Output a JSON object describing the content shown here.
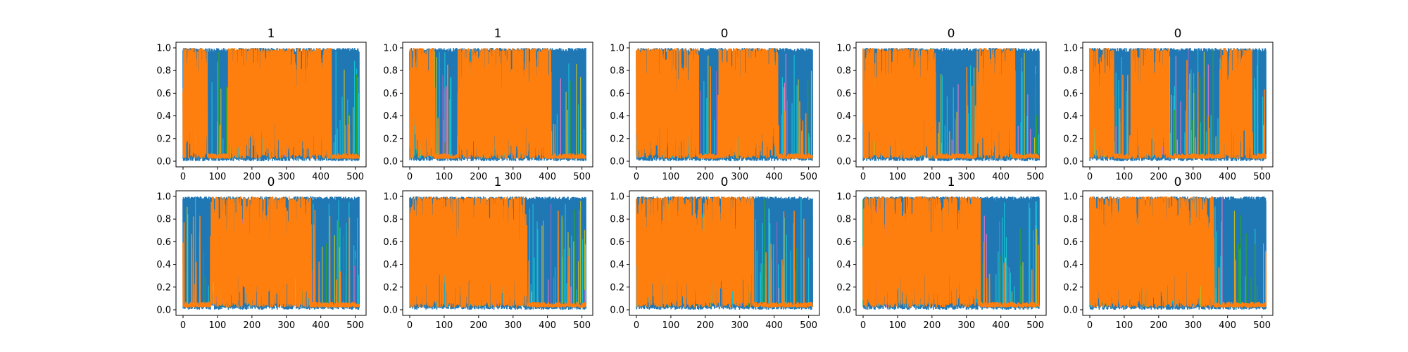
{
  "chart_data": {
    "type": "line",
    "layout": {
      "rows": 2,
      "columns": 5
    },
    "xlim": [
      0,
      511
    ],
    "ylim": [
      0,
      1
    ],
    "xticks": [
      0,
      100,
      200,
      300,
      400,
      500
    ],
    "yticks": [
      "0.0",
      "0.2",
      "0.4",
      "0.6",
      "0.8",
      "1.0"
    ],
    "grid": false,
    "legend": "none",
    "series_colors": {
      "blue": "#1f77b4",
      "orange": "#ff7f0e",
      "cyan": "#17becf",
      "green": "#2ca02c",
      "olive": "#bcbd22",
      "pink": "#e377c2",
      "purple": "#9467bd",
      "brown": "#8c564b"
    },
    "panels": [
      {
        "title": "1",
        "orange_segments": [
          [
            0,
            70
          ],
          [
            130,
            430
          ]
        ]
      },
      {
        "title": "1",
        "orange_segments": [
          [
            0,
            70
          ],
          [
            140,
            410
          ]
        ]
      },
      {
        "title": "0",
        "orange_segments": [
          [
            0,
            180
          ],
          [
            240,
            410
          ]
        ]
      },
      {
        "title": "0",
        "orange_segments": [
          [
            0,
            210
          ],
          [
            330,
            440
          ]
        ]
      },
      {
        "title": "0",
        "orange_segments": [
          [
            0,
            70
          ],
          [
            120,
            230
          ],
          [
            380,
            470
          ]
        ]
      },
      {
        "title": "0",
        "orange_segments": [
          [
            80,
            370
          ]
        ]
      },
      {
        "title": "1",
        "orange_segments": [
          [
            0,
            340
          ]
        ]
      },
      {
        "title": "0",
        "orange_segments": [
          [
            0,
            340
          ]
        ]
      },
      {
        "title": "1",
        "orange_segments": [
          [
            0,
            340
          ]
        ]
      },
      {
        "title": "0",
        "orange_segments": [
          [
            0,
            360
          ]
        ]
      }
    ]
  }
}
